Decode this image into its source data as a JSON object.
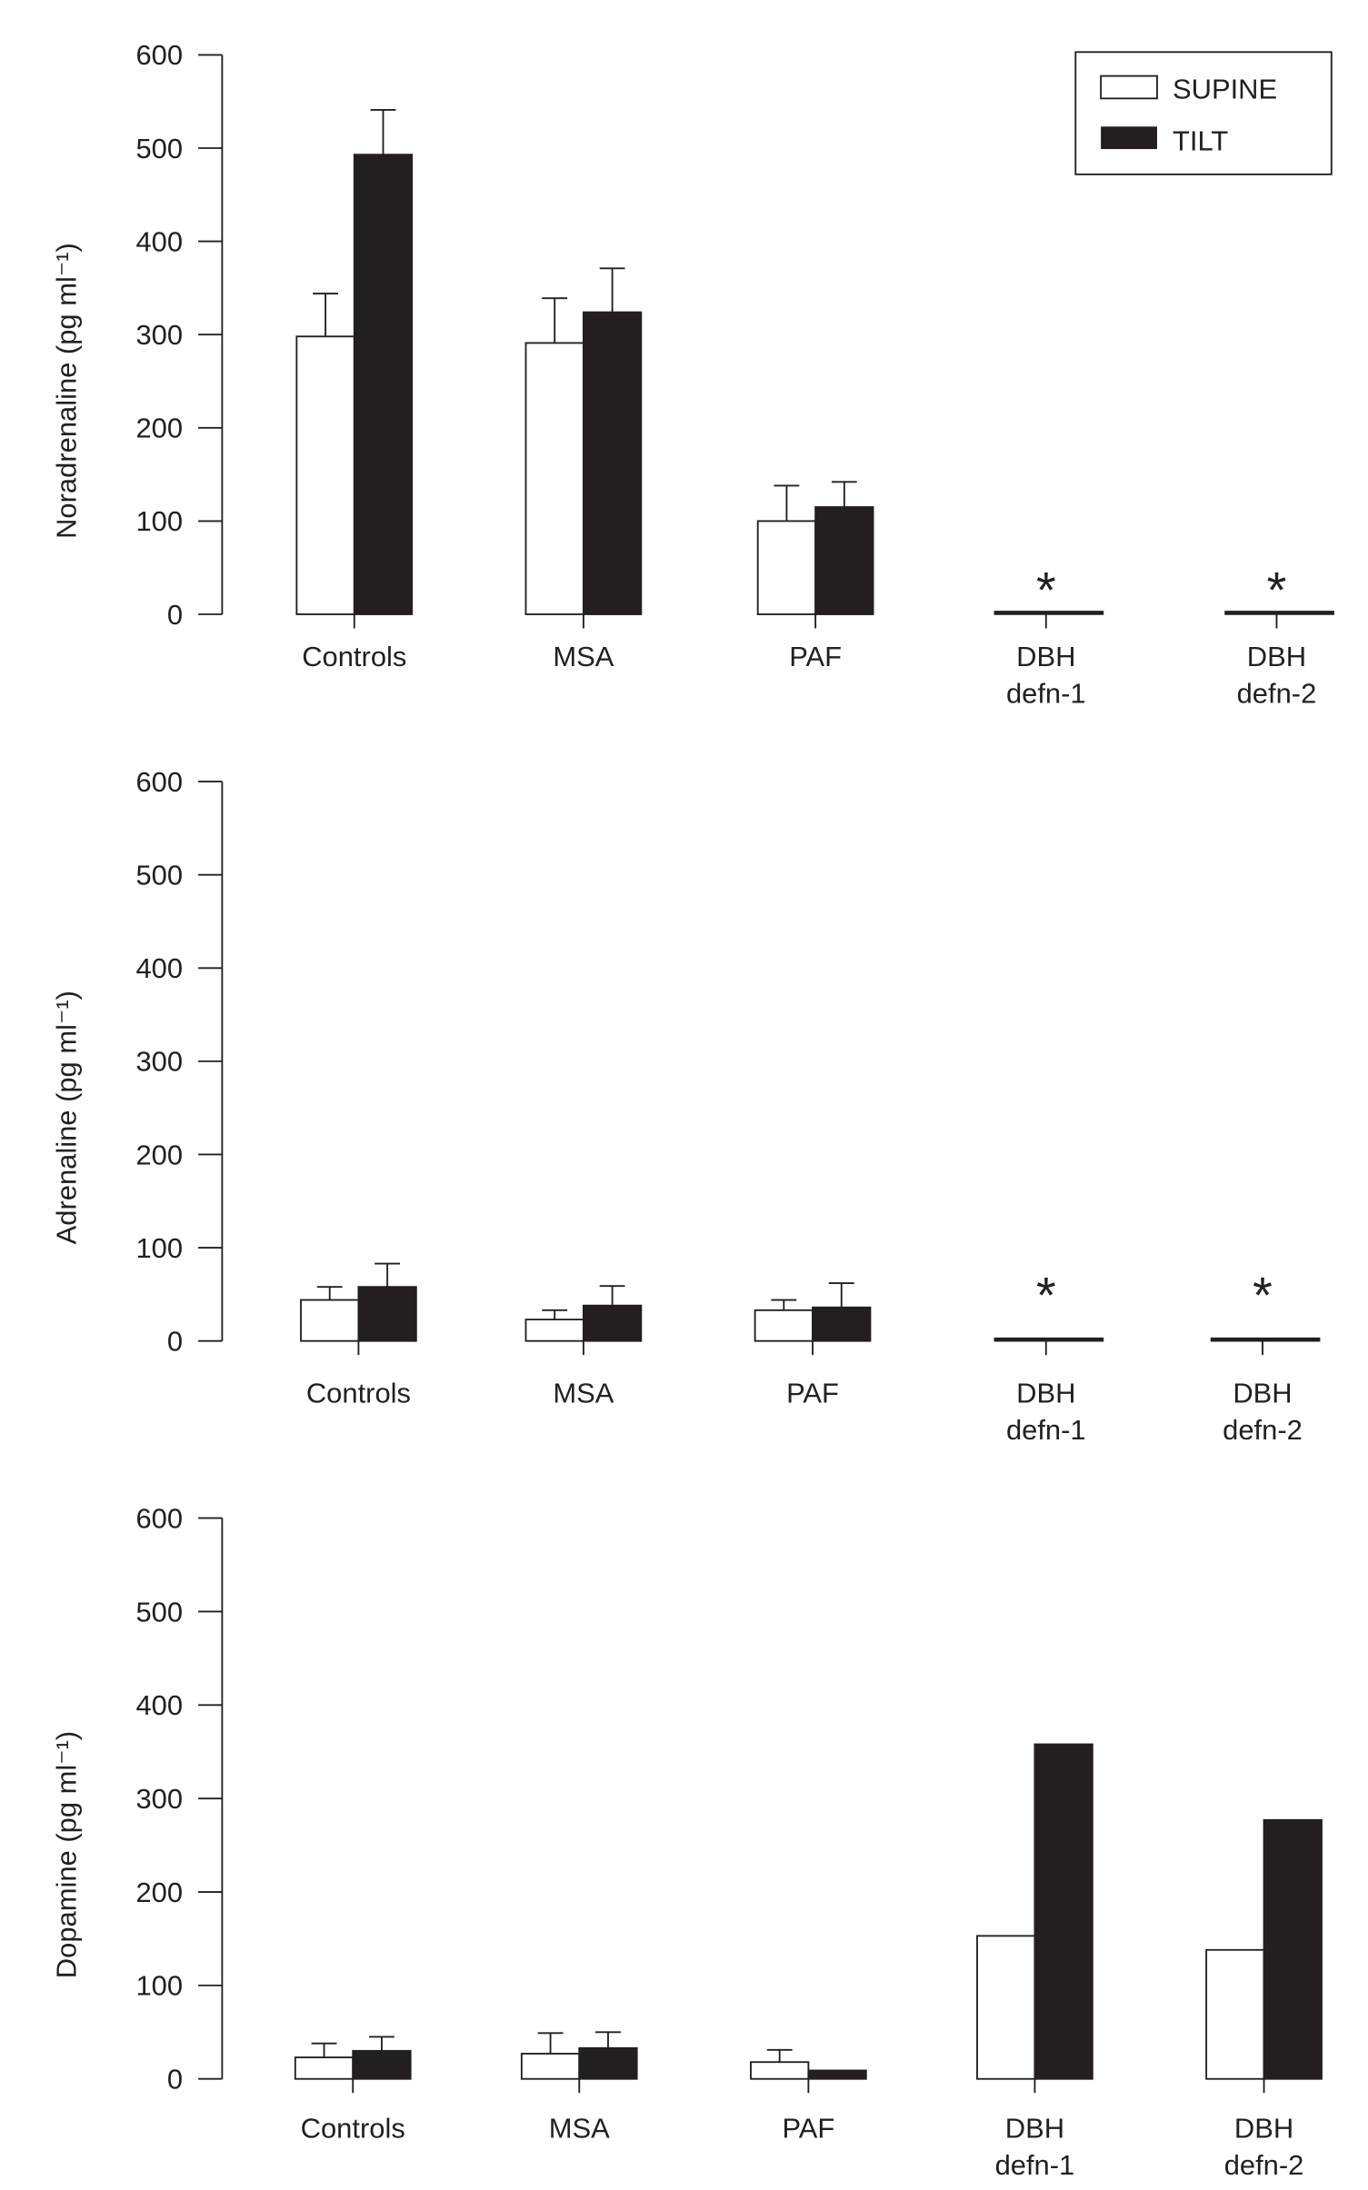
{
  "legend": {
    "supine": "SUPINE",
    "tilt": "TILT",
    "placement": "top-right"
  },
  "colors": {
    "supine": "#ffffff",
    "tilt": "#231f20",
    "stroke": "#231f20"
  },
  "chart_data": [
    {
      "type": "bar",
      "ylabel": "Noradrenaline (pg ml⁻¹)",
      "ylim": [
        0,
        600
      ],
      "yticks": [
        0,
        100,
        200,
        300,
        400,
        500,
        600
      ],
      "categories": [
        [
          "Controls"
        ],
        [
          "MSA"
        ],
        [
          "PAF"
        ],
        [
          "DBH",
          "defn-1"
        ],
        [
          "DBH",
          "defn-2"
        ]
      ],
      "series": [
        {
          "name": "SUPINE",
          "values": [
            298,
            291,
            100,
            0,
            0
          ],
          "errors": [
            46,
            48,
            38,
            null,
            null
          ]
        },
        {
          "name": "TILT",
          "values": [
            493,
            324,
            115,
            0,
            0
          ],
          "errors": [
            48,
            47,
            27,
            null,
            null
          ]
        }
      ],
      "annotations": [
        null,
        null,
        null,
        "*",
        "*"
      ]
    },
    {
      "type": "bar",
      "ylabel": "Adrenaline (pg ml⁻¹)",
      "ylim": [
        0,
        600
      ],
      "yticks": [
        0,
        100,
        200,
        300,
        400,
        500,
        600
      ],
      "categories": [
        [
          "Controls"
        ],
        [
          "MSA"
        ],
        [
          "PAF"
        ],
        [
          "DBH",
          "defn-1"
        ],
        [
          "DBH",
          "defn-2"
        ]
      ],
      "series": [
        {
          "name": "SUPINE",
          "values": [
            44,
            23,
            33,
            0,
            0
          ],
          "errors": [
            14,
            10,
            11,
            null,
            null
          ]
        },
        {
          "name": "TILT",
          "values": [
            58,
            38,
            36,
            0,
            0
          ],
          "errors": [
            25,
            21,
            26,
            null,
            null
          ]
        }
      ],
      "annotations": [
        null,
        null,
        null,
        "*",
        "*"
      ]
    },
    {
      "type": "bar",
      "ylabel": "Dopamine (pg ml⁻¹)",
      "ylim": [
        0,
        600
      ],
      "yticks": [
        0,
        100,
        200,
        300,
        400,
        500,
        600
      ],
      "categories": [
        [
          "Controls"
        ],
        [
          "MSA"
        ],
        [
          "PAF"
        ],
        [
          "DBH",
          "defn-1"
        ],
        [
          "DBH",
          "defn-2"
        ]
      ],
      "series": [
        {
          "name": "SUPINE",
          "values": [
            23,
            27,
            18,
            153,
            138
          ],
          "errors": [
            15,
            22,
            13,
            null,
            null
          ]
        },
        {
          "name": "TILT",
          "values": [
            30,
            33,
            9,
            358,
            277
          ],
          "errors": [
            15,
            17,
            null,
            null,
            null
          ]
        }
      ],
      "annotations": [
        null,
        null,
        null,
        null,
        null
      ]
    }
  ]
}
